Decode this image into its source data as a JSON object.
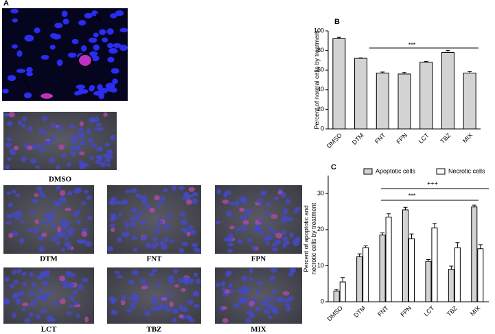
{
  "panel_label": "A",
  "images": [
    "DMSO",
    "DTM",
    "FNT",
    "FPN",
    "LCT",
    "TBZ",
    "MIX"
  ],
  "chart_data": [
    {
      "type": "bar",
      "panel_label": "B",
      "ylabel": "Percent of normal cells by treatment",
      "categories": [
        "DMSO",
        "DTM",
        "FNT",
        "FPN",
        "LCT",
        "TBZ",
        "MIX"
      ],
      "series": [
        {
          "color": "#d3d3d3",
          "values": [
            92,
            72,
            57,
            56,
            68,
            78,
            57
          ],
          "errors": [
            1.5,
            0.5,
            1,
            1.5,
            1,
            2,
            1.5
          ]
        }
      ],
      "ylim": [
        0,
        100
      ],
      "yticks": [
        0,
        20,
        40,
        60,
        80,
        100
      ],
      "annotations": [
        "***"
      ]
    },
    {
      "type": "bar",
      "panel_label": "C",
      "ylabel": [
        "Percent of apoptotic and",
        "necrotic cells by treatment"
      ],
      "categories": [
        "DMSO",
        "DTM",
        "FNT",
        "FPN",
        "LCT",
        "TBZ",
        "MIX"
      ],
      "series": [
        {
          "name": "Apoptotic cells",
          "color": "#d3d3d3",
          "values": [
            3,
            12.5,
            18.5,
            25.5,
            11.2,
            9,
            26.3
          ],
          "errors": [
            0.4,
            0.8,
            0.6,
            0.7,
            0.5,
            0.9,
            0.5
          ]
        },
        {
          "name": "Necrotic cells",
          "color": "#ffffff",
          "values": [
            5.5,
            15,
            23.5,
            17.5,
            20.5,
            15,
            14.7
          ],
          "errors": [
            1.2,
            0.5,
            0.9,
            1.3,
            1.2,
            1.4,
            1.1
          ]
        }
      ],
      "ylim": [
        0,
        35
      ],
      "yticks": [
        0,
        10,
        20,
        30
      ],
      "annotations": [
        "+++",
        "***"
      ]
    }
  ]
}
